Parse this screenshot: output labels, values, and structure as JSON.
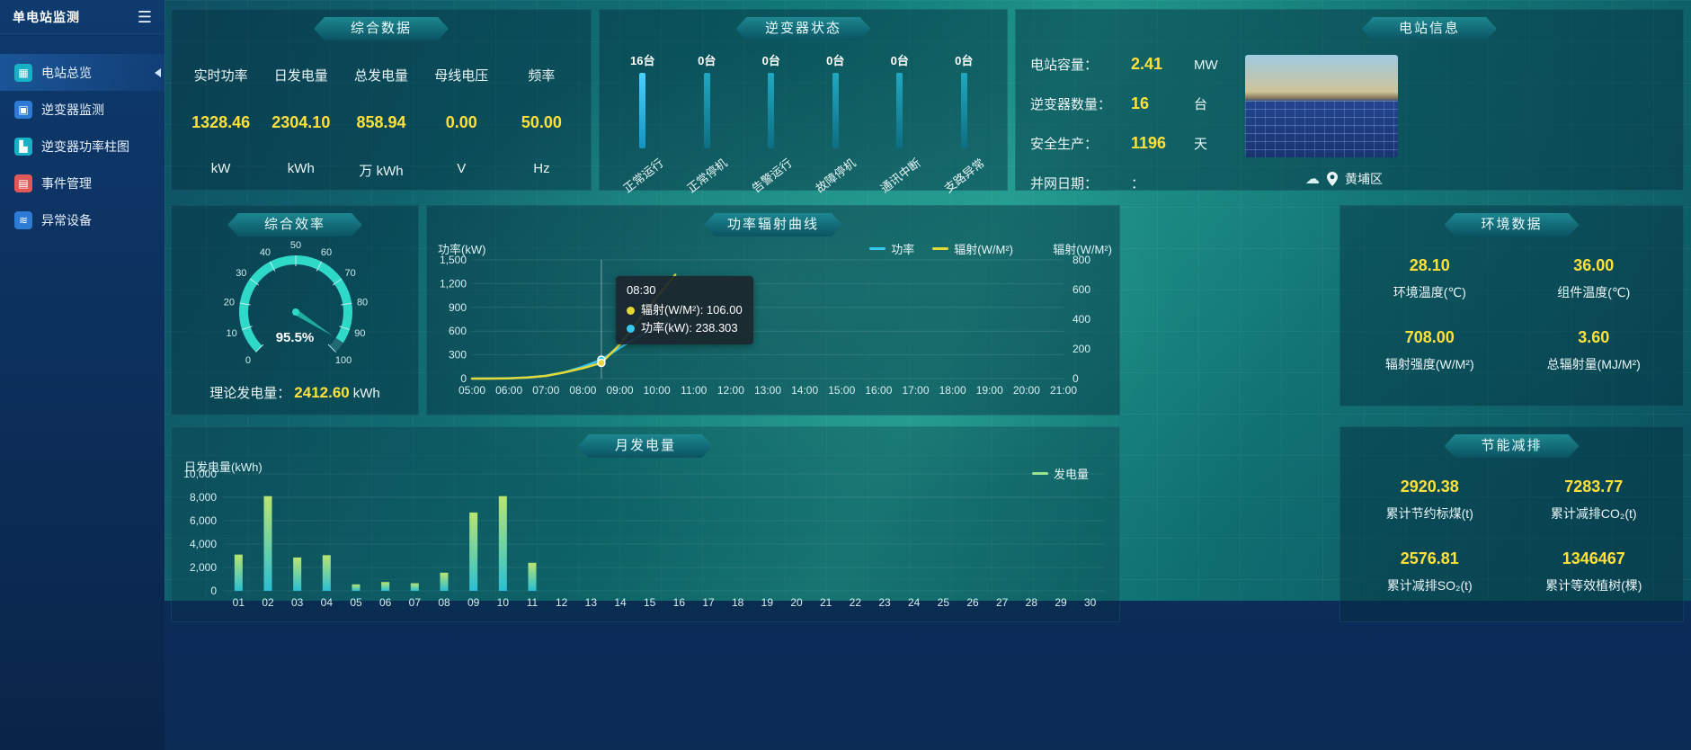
{
  "app": {
    "title": "单电站监测"
  },
  "icons": {
    "hamburger": "☰",
    "overview": "▦",
    "inverter_monitor": "▣",
    "inverter_power": "▙",
    "event": "▤",
    "abnormal": "≋",
    "cloud": "☁"
  },
  "sidebar": {
    "items": [
      {
        "label": "电站总览"
      },
      {
        "label": "逆变器监测"
      },
      {
        "label": "逆变器功率柱图"
      },
      {
        "label": "事件管理"
      },
      {
        "label": "异常设备"
      }
    ]
  },
  "panels": {
    "summary": {
      "title": "综合数据",
      "metrics": [
        {
          "label": "实时功率",
          "value": "1328.46",
          "unit": "kW"
        },
        {
          "label": "日发电量",
          "value": "2304.10",
          "unit": "kWh"
        },
        {
          "label": "总发电量",
          "value": "858.94",
          "unit": "万 kWh"
        },
        {
          "label": "母线电压",
          "value": "0.00",
          "unit": "V"
        },
        {
          "label": "频率",
          "value": "50.00",
          "unit": "Hz"
        }
      ]
    },
    "inverter_status": {
      "title": "逆变器状态",
      "items": [
        {
          "count": "16台",
          "label": "正常运行"
        },
        {
          "count": "0台",
          "label": "正常停机"
        },
        {
          "count": "0台",
          "label": "告警运行"
        },
        {
          "count": "0台",
          "label": "故障停机"
        },
        {
          "count": "0台",
          "label": "通讯中断"
        },
        {
          "count": "0台",
          "label": "支路异常"
        }
      ]
    },
    "station_info": {
      "title": "电站信息",
      "rows": [
        {
          "label": "电站容量：",
          "value": "2.41",
          "unit": "MW"
        },
        {
          "label": "逆变器数量：",
          "value": "16",
          "unit": "台"
        },
        {
          "label": "安全生产：",
          "value": "1196",
          "unit": "天"
        },
        {
          "label": "并网日期：",
          "value": "：",
          "unit": ""
        }
      ],
      "location": "黄埔区"
    },
    "efficiency": {
      "title": "综合效率",
      "theory": {
        "label": "理论发电量：",
        "value": "2412.60",
        "unit": "kWh"
      }
    },
    "environment": {
      "title": "环境数据",
      "items": [
        {
          "value": "28.10",
          "label": "环境温度(℃)"
        },
        {
          "value": "36.00",
          "label": "组件温度(℃)"
        },
        {
          "value": "708.00",
          "label": "辐射强度(W/M²)"
        },
        {
          "value": "3.60",
          "label": "总辐射量(MJ/M²)"
        }
      ]
    },
    "energy_saving": {
      "title": "节能减排",
      "items": [
        {
          "value": "2920.38",
          "label": "累计节约标煤(t)"
        },
        {
          "value": "7283.77",
          "label": "累计减排CO₂(t)"
        },
        {
          "value": "2576.81",
          "label": "累计减排SO₂(t)"
        },
        {
          "value": "1346467",
          "label": "累计等效植树(棵)"
        }
      ]
    }
  },
  "chart_data": [
    {
      "id": "power_radiation",
      "type": "line",
      "title": "功率辐射曲线",
      "x": [
        "05:00",
        "05:30",
        "06:00",
        "06:30",
        "07:00",
        "07:30",
        "08:00",
        "08:30",
        "09:00",
        "09:30",
        "10:00",
        "10:30"
      ],
      "x_ticks": [
        "05:00",
        "06:00",
        "07:00",
        "08:00",
        "09:00",
        "10:00",
        "11:00",
        "12:00",
        "13:00",
        "14:00",
        "15:00",
        "16:00",
        "17:00",
        "18:00",
        "19:00",
        "20:00",
        "21:00"
      ],
      "series": [
        {
          "name": "功率",
          "axis": "left",
          "color": "#35c8f0",
          "values": [
            0,
            1,
            4,
            12,
            35,
            80,
            150,
            238.303,
            390,
            530,
            650,
            760
          ]
        },
        {
          "name": "辐射(W/M²)",
          "axis": "right",
          "color": "#e3d838",
          "values": [
            0,
            0,
            2,
            7,
            18,
            42,
            70,
            106,
            230,
            390,
            550,
            700
          ]
        }
      ],
      "left_axis": {
        "label": "功率(kW)",
        "min": 0,
        "max": 1500,
        "ticks": [
          0,
          300,
          600,
          900,
          1200,
          1500
        ]
      },
      "right_axis": {
        "label": "辐射(W/M²)",
        "min": 0,
        "max": 800,
        "ticks": [
          0,
          200,
          400,
          600,
          800
        ]
      },
      "grid": true,
      "legend_position": "top-right",
      "tooltip": {
        "time": "08:30",
        "lines": [
          {
            "color": "#e3d838",
            "text": "辐射(W/M²): 106.00"
          },
          {
            "color": "#35c8f0",
            "text": "功率(kW): 238.303"
          }
        ]
      }
    },
    {
      "id": "monthly_generation",
      "type": "bar",
      "title": "月发电量",
      "ylabel": "日发电量(kWh)",
      "legend": "发电量",
      "legend_color": "#9be08a",
      "categories": [
        "01",
        "02",
        "03",
        "04",
        "05",
        "06",
        "07",
        "08",
        "09",
        "10",
        "11",
        "12",
        "13",
        "14",
        "15",
        "16",
        "17",
        "18",
        "19",
        "20",
        "21",
        "22",
        "23",
        "24",
        "25",
        "26",
        "27",
        "28",
        "29",
        "30"
      ],
      "values": [
        3100,
        8100,
        2850,
        3050,
        550,
        750,
        650,
        1550,
        6700,
        8100,
        2400,
        0,
        0,
        0,
        0,
        0,
        0,
        0,
        0,
        0,
        0,
        0,
        0,
        0,
        0,
        0,
        0,
        0,
        0,
        0
      ],
      "ylim": [
        0,
        10000
      ],
      "yticks": [
        0,
        2000,
        4000,
        6000,
        8000,
        10000
      ],
      "grid": true
    },
    {
      "id": "efficiency_gauge",
      "type": "gauge",
      "value": 95.5,
      "display": "95.5%",
      "min": 0,
      "max": 100,
      "ticks": [
        0,
        10,
        20,
        30,
        40,
        50,
        60,
        70,
        80,
        90,
        100
      ]
    }
  ]
}
